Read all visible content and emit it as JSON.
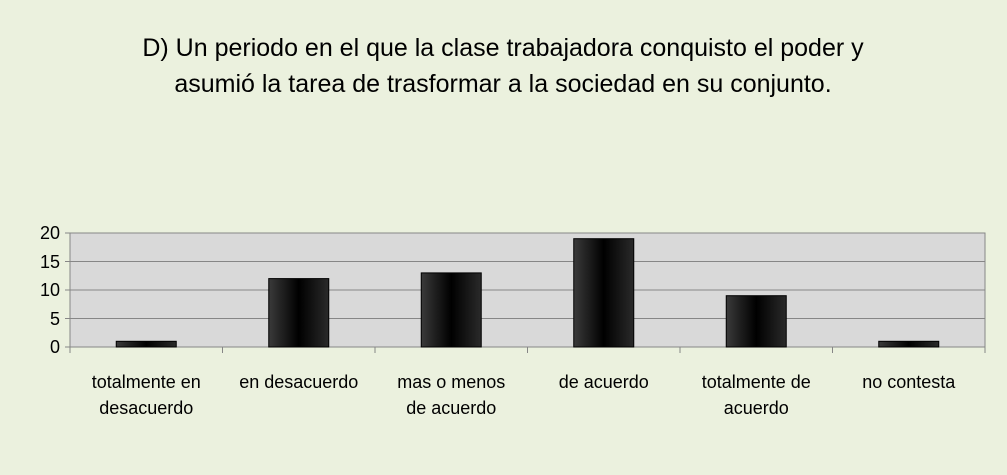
{
  "chart_data": {
    "type": "bar",
    "title": "D) Un periodo en el que la clase trabajadora conquisto el poder y asumió la tarea de trasformar a la sociedad en su conjunto.",
    "categories": [
      "totalmente en desacuerdo",
      "en desacuerdo",
      "mas o menos de acuerdo",
      "de acuerdo",
      "totalmente de acuerdo",
      "no contesta"
    ],
    "values": [
      1,
      12,
      13,
      19,
      9,
      1
    ],
    "color": "#000000",
    "ylim": [
      0,
      20
    ],
    "yticks": [
      0,
      5,
      10,
      15,
      20
    ],
    "grid": true
  }
}
